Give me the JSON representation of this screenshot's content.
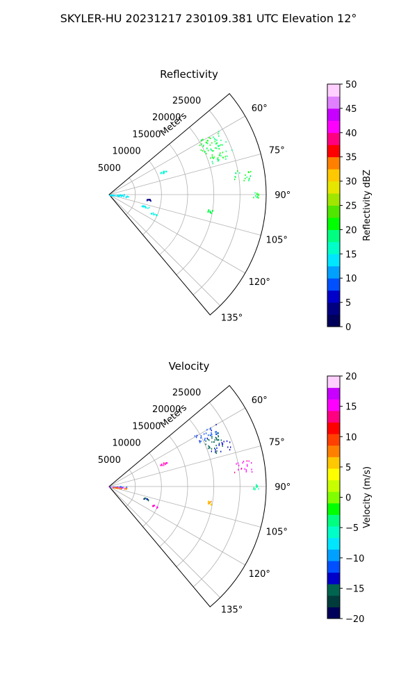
{
  "figure": {
    "suptitle": "SKYLER-HU  20231217  230109.381 UTC Elevation 12°"
  },
  "chart_data": [
    {
      "type": "polar-scatter",
      "title": "Reflectivity",
      "radial_axis_label": "Meters",
      "radial_ticks": [
        "5000",
        "10000",
        "15000",
        "20000",
        "25000"
      ],
      "radial_tick_values": [
        5000,
        10000,
        15000,
        20000,
        25000
      ],
      "rlim": [
        0,
        30000
      ],
      "theta_range_deg": [
        50,
        140
      ],
      "theta_ticks": [
        "60°",
        "75°",
        "90°",
        "105°",
        "120°",
        "135°"
      ],
      "theta_tick_values": [
        60,
        75,
        90,
        105,
        120,
        135
      ],
      "grid": true,
      "colorbar": {
        "label": "Reflectivity dBZ",
        "min": 0,
        "max": 50,
        "ticks": [
          "0",
          "5",
          "10",
          "15",
          "20",
          "25",
          "30",
          "35",
          "40",
          "45",
          "50"
        ],
        "tick_values": [
          0,
          5,
          10,
          15,
          20,
          25,
          30,
          35,
          40,
          45,
          50
        ],
        "palette": [
          "#00005a",
          "#000080",
          "#0000c8",
          "#0050ff",
          "#00a0ff",
          "#00e6ff",
          "#00ffc8",
          "#00ff80",
          "#00ff00",
          "#50e600",
          "#a0e600",
          "#e6e600",
          "#ffc800",
          "#ff8000",
          "#ff0000",
          "#ff0080",
          "#ff00ff",
          "#c800ff",
          "#e080ff",
          "#ffd0ff"
        ]
      },
      "clusters": [
        {
          "theta": [
            59,
            67
          ],
          "r": [
            19000,
            24500
          ],
          "value": 20
        },
        {
          "theta": [
            68,
            73
          ],
          "r": [
            20500,
            25000
          ],
          "value": 20
        },
        {
          "theta": [
            79,
            84
          ],
          "r": [
            24000,
            27500
          ],
          "value": 20
        },
        {
          "theta": [
            87,
            92
          ],
          "r": [
            0,
            3500
          ],
          "value": 14
        },
        {
          "theta": [
            92,
            97
          ],
          "r": [
            0,
            4000
          ],
          "value": 14
        },
        {
          "theta": [
            66,
            68
          ],
          "r": [
            10500,
            12000
          ],
          "value": 15
        },
        {
          "theta": [
            96,
            98
          ],
          "r": [
            7000,
            8000
          ],
          "value": 4
        },
        {
          "theta": [
            107,
            109
          ],
          "r": [
            6500,
            8000
          ],
          "value": 15
        },
        {
          "theta": [
            112,
            114
          ],
          "r": [
            8500,
            10000
          ],
          "value": 15
        },
        {
          "theta": [
            98,
            100
          ],
          "r": [
            19000,
            20000
          ],
          "value": 20
        },
        {
          "theta": [
            89,
            91
          ],
          "r": [
            27500,
            28500
          ],
          "value": 20
        }
      ]
    },
    {
      "type": "polar-scatter",
      "title": "Velocity",
      "radial_axis_label": "Meters",
      "radial_ticks": [
        "5000",
        "10000",
        "15000",
        "20000",
        "25000"
      ],
      "radial_tick_values": [
        5000,
        10000,
        15000,
        20000,
        25000
      ],
      "rlim": [
        0,
        30000
      ],
      "theta_range_deg": [
        50,
        140
      ],
      "theta_ticks": [
        "60°",
        "75°",
        "90°",
        "105°",
        "120°",
        "135°"
      ],
      "theta_tick_values": [
        60,
        75,
        90,
        105,
        120,
        135
      ],
      "grid": true,
      "colorbar": {
        "label": "Velocity (m/s)",
        "min": -20,
        "max": 20,
        "ticks": [
          "−20",
          "−15",
          "−10",
          "−5",
          "0",
          "5",
          "10",
          "15",
          "20"
        ],
        "tick_values": [
          -20,
          -15,
          -10,
          -5,
          0,
          5,
          10,
          15,
          20
        ],
        "palette": [
          "#00005a",
          "#003c3c",
          "#006450",
          "#0000c8",
          "#0050ff",
          "#00a0ff",
          "#00e6ff",
          "#00ffc8",
          "#00ff80",
          "#00ff00",
          "#80ff00",
          "#c8ff00",
          "#ffff00",
          "#ffc800",
          "#ff8000",
          "#ff4000",
          "#ff0000",
          "#ff0080",
          "#ff00ff",
          "#c800ff",
          "#ffd0ff"
        ]
      },
      "clusters": [
        {
          "theta": [
            59,
            64
          ],
          "r": [
            19000,
            24000
          ],
          "value": -12
        },
        {
          "theta": [
            63,
            69
          ],
          "r": [
            20000,
            23500
          ],
          "value": -15
        },
        {
          "theta": [
            68,
            73
          ],
          "r": [
            20500,
            25000
          ],
          "value": -14
        },
        {
          "theta": [
            79,
            84
          ],
          "r": [
            24000,
            27500
          ],
          "value": 15
        },
        {
          "theta": [
            87,
            91
          ],
          "r": [
            0,
            3500
          ],
          "value": -10
        },
        {
          "theta": [
            91,
            94
          ],
          "r": [
            0,
            3500
          ],
          "value": 15
        },
        {
          "theta": [
            94,
            98
          ],
          "r": [
            0,
            3500
          ],
          "value": 8
        },
        {
          "theta": [
            66,
            68
          ],
          "r": [
            10500,
            12000
          ],
          "value": 15
        },
        {
          "theta": [
            107,
            109
          ],
          "r": [
            6500,
            8000
          ],
          "value": -15
        },
        {
          "theta": [
            112,
            114
          ],
          "r": [
            8500,
            10000
          ],
          "value": 15
        },
        {
          "theta": [
            98,
            100
          ],
          "r": [
            19000,
            20000
          ],
          "value": 6
        },
        {
          "theta": [
            89,
            91
          ],
          "r": [
            27500,
            28500
          ],
          "value": -5
        }
      ]
    }
  ]
}
